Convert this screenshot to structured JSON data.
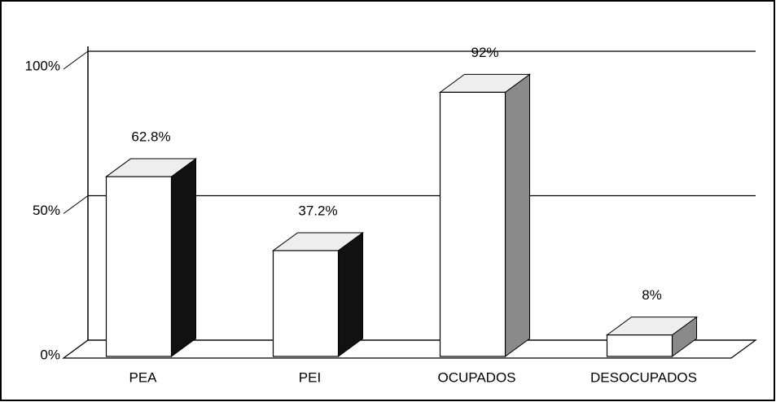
{
  "chart_data": {
    "type": "bar3d",
    "categories": [
      "PEA",
      "PEI",
      "OCUPADOS",
      "DESOCUPADOS"
    ],
    "values": [
      62.8,
      37.2,
      92,
      8
    ],
    "value_labels": [
      "62.8%",
      "37.2%",
      "92%",
      "8%"
    ],
    "color": "#ffffff",
    "side_colors": [
      "#111111",
      "#111111",
      "#8a8a8a",
      "#8a8a8a"
    ],
    "ylim": [
      0,
      100
    ],
    "yticks": [
      {
        "value": 0,
        "label": "0%"
      },
      {
        "value": 50,
        "label": "50%"
      },
      {
        "value": 100,
        "label": "100%"
      }
    ],
    "grid": true
  }
}
